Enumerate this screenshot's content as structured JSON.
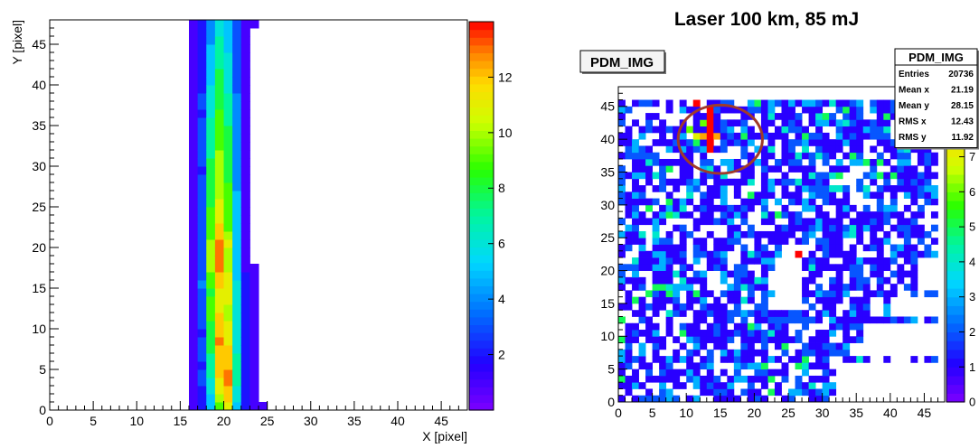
{
  "chart_data": [
    {
      "type": "heatmap",
      "title": "",
      "xlabel": "X [pixel]",
      "ylabel": "Y [pixel]",
      "xlim": [
        0,
        48
      ],
      "ylim": [
        0,
        48
      ],
      "x_ticks": [
        "0",
        "5",
        "10",
        "15",
        "20",
        "25",
        "30",
        "35",
        "40",
        "45"
      ],
      "y_ticks": [
        "0",
        "5",
        "10",
        "15",
        "20",
        "25",
        "30",
        "35",
        "40",
        "45"
      ],
      "colorbar_ticks": [
        "2",
        "4",
        "6",
        "8",
        "10",
        "12"
      ],
      "zlim": [
        0,
        14
      ],
      "grid": false,
      "columns": [
        {
          "x": 16,
          "values": [
            1,
            1,
            1,
            1,
            1,
            1,
            1,
            1,
            1,
            1,
            1,
            1,
            1,
            1,
            1,
            1,
            1,
            1,
            1,
            1,
            1,
            1,
            1,
            1,
            1,
            1,
            1,
            1,
            1,
            1,
            1,
            1,
            1,
            1,
            1,
            1,
            1,
            1,
            1,
            1,
            1,
            1,
            1,
            1,
            1,
            1,
            1,
            1
          ]
        },
        {
          "x": 17,
          "values": [
            2,
            2,
            2,
            3,
            3,
            2,
            3,
            3,
            3,
            2,
            3,
            3,
            3,
            3,
            3,
            4,
            3,
            3,
            3,
            3,
            3,
            3,
            3,
            3,
            3,
            3,
            3,
            3,
            3,
            2,
            3,
            3,
            3,
            3,
            3,
            3,
            2,
            3,
            3,
            2,
            2,
            2,
            2,
            2,
            2,
            2,
            2,
            2
          ]
        },
        {
          "x": 18,
          "values": [
            5,
            5,
            6,
            6,
            7,
            7,
            7,
            8,
            8,
            8,
            8,
            9,
            9,
            9,
            8,
            9,
            9,
            10,
            10,
            10,
            10,
            9,
            9,
            9,
            9,
            8,
            8,
            8,
            8,
            8,
            8,
            7,
            7,
            7,
            7,
            7,
            6,
            6,
            6,
            6,
            5,
            5,
            5,
            5,
            5,
            4,
            4,
            4
          ]
        },
        {
          "x": 19,
          "values": [
            9,
            10,
            11,
            11,
            12,
            12,
            12,
            12,
            13,
            12,
            12,
            12,
            11,
            11,
            11,
            12,
            12,
            13,
            13,
            13,
            13,
            12,
            12,
            11,
            11,
            11,
            10,
            10,
            10,
            10,
            10,
            10,
            9,
            9,
            9,
            9,
            9,
            8,
            8,
            8,
            8,
            8,
            7,
            7,
            7,
            7,
            6,
            6
          ]
        },
        {
          "x": 20,
          "values": [
            11,
            12,
            12,
            13,
            13,
            12,
            12,
            12,
            11,
            11,
            11,
            10,
            10,
            11,
            11,
            11,
            11,
            10,
            10,
            10,
            11,
            10,
            9,
            9,
            9,
            9,
            9,
            9,
            8,
            8,
            8,
            8,
            8,
            8,
            8,
            7,
            7,
            7,
            7,
            6,
            6,
            6,
            6,
            6,
            5,
            5,
            5,
            5
          ]
        },
        {
          "x": 21,
          "values": [
            5,
            6,
            6,
            7,
            7,
            7,
            7,
            6,
            6,
            6,
            6,
            6,
            6,
            6,
            6,
            6,
            5,
            5,
            5,
            5,
            5,
            5,
            5,
            5,
            5,
            5,
            5,
            4,
            4,
            4,
            4,
            4,
            4,
            4,
            4,
            4,
            4,
            4,
            4,
            3,
            3,
            3,
            3,
            3,
            3,
            3,
            3,
            3
          ]
        },
        {
          "x": 22,
          "values": [
            2,
            2,
            2,
            2,
            2,
            2,
            2,
            2,
            2,
            2,
            2,
            2,
            2,
            2,
            2,
            2,
            2,
            1,
            1,
            1,
            1,
            1,
            1,
            1,
            1,
            1,
            1,
            1,
            1,
            1,
            1,
            1,
            1,
            1,
            1,
            1,
            1,
            1,
            1,
            1,
            1,
            1,
            1,
            1,
            1,
            1,
            1,
            1
          ]
        },
        {
          "x": 23,
          "values": [
            1,
            1,
            1,
            1,
            1,
            1,
            1,
            1,
            1,
            1,
            1,
            1,
            1,
            1,
            1,
            1,
            1,
            1,
            0,
            0,
            0,
            0,
            0,
            0,
            0,
            0,
            0,
            0,
            0,
            0,
            0,
            0,
            0,
            0,
            0,
            0,
            0,
            0,
            0,
            0,
            0,
            0,
            0,
            0,
            0,
            0,
            0,
            1
          ]
        },
        {
          "x": 24,
          "values": [
            1,
            0,
            0,
            0,
            0,
            0,
            0,
            0,
            0,
            0,
            0,
            0,
            0,
            0,
            0,
            0,
            0,
            0,
            0,
            0,
            0,
            0,
            0,
            0,
            0,
            0,
            0,
            0,
            0,
            0,
            0,
            0,
            0,
            0,
            0,
            0,
            0,
            0,
            0,
            0,
            0,
            0,
            0,
            0,
            0,
            0,
            0,
            0
          ]
        }
      ]
    },
    {
      "type": "heatmap",
      "title": "Laser 100 km, 85 mJ",
      "hist_name": "PDM_IMG",
      "xlabel": "",
      "ylabel": "",
      "xlim": [
        0,
        48
      ],
      "ylim": [
        0,
        48
      ],
      "x_ticks": [
        "0",
        "5",
        "10",
        "15",
        "20",
        "25",
        "30",
        "35",
        "40",
        "45"
      ],
      "y_ticks": [
        "0",
        "5",
        "10",
        "15",
        "20",
        "25",
        "30",
        "35",
        "40",
        "45"
      ],
      "colorbar_ticks": [
        "0",
        "1",
        "2",
        "3",
        "4",
        "5",
        "6",
        "7",
        "8"
      ],
      "zlim": [
        0,
        9
      ],
      "grid": false,
      "stats": {
        "title": "PDM_IMG",
        "rows": [
          {
            "label": "Entries",
            "value": "20736"
          },
          {
            "label": "Mean x",
            "value": "21.19"
          },
          {
            "label": "Mean y",
            "value": "28.15"
          },
          {
            "label": "RMS x",
            "value": "12.43"
          },
          {
            "label": "RMS y",
            "value": "11.92"
          }
        ]
      },
      "highlight_circle": {
        "x": 15,
        "y": 40,
        "rx": 6.2,
        "ry": 5.2,
        "color": "#a03a2a"
      },
      "hot_pixels": [
        {
          "x": 13,
          "y": 40,
          "v": 9
        },
        {
          "x": 13,
          "y": 41,
          "v": 9
        },
        {
          "x": 13,
          "y": 42,
          "v": 9
        },
        {
          "x": 13,
          "y": 43,
          "v": 9
        },
        {
          "x": 13,
          "y": 39,
          "v": 9
        },
        {
          "x": 13,
          "y": 38,
          "v": 9
        },
        {
          "x": 13,
          "y": 44,
          "v": 9
        },
        {
          "x": 11,
          "y": 40,
          "v": 7
        },
        {
          "x": 12,
          "y": 40,
          "v": 8
        },
        {
          "x": 14,
          "y": 40,
          "v": 8
        },
        {
          "x": 10,
          "y": 41,
          "v": 6
        },
        {
          "x": 12,
          "y": 42,
          "v": 6
        },
        {
          "x": 11,
          "y": 39,
          "v": 5
        },
        {
          "x": 11,
          "y": 45,
          "v": 9
        },
        {
          "x": 26,
          "y": 22,
          "v": 9
        }
      ],
      "empty_regions": [
        {
          "x0": 23,
          "y0": 14,
          "x1": 27,
          "y1": 22
        },
        {
          "x0": 32,
          "y0": 0,
          "x1": 48,
          "y1": 6
        },
        {
          "x0": 36,
          "y0": 7,
          "x1": 48,
          "y1": 12
        },
        {
          "x0": 40,
          "y0": 13,
          "x1": 48,
          "y1": 16
        },
        {
          "x0": 44,
          "y0": 17,
          "x1": 48,
          "y1": 22
        }
      ]
    }
  ]
}
